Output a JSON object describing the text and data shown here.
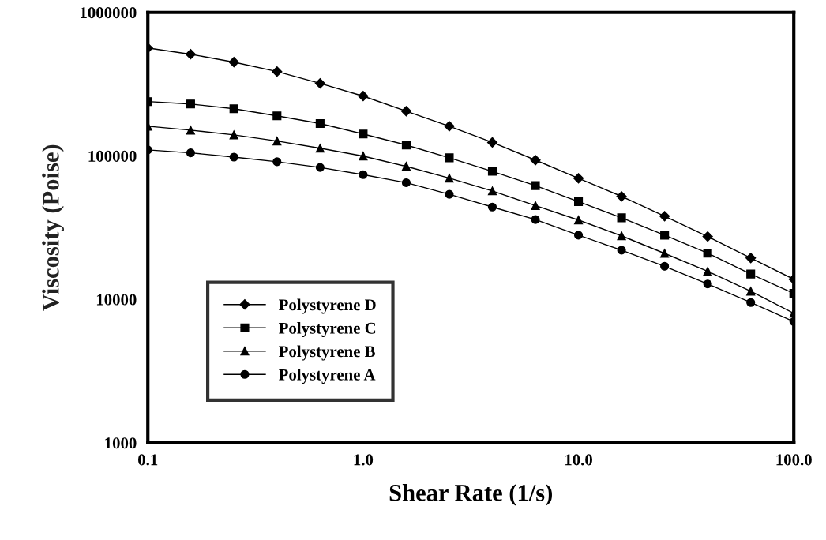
{
  "chart_data": {
    "type": "line",
    "xlabel": "Shear Rate (1/s)",
    "ylabel": "Viscosity (Poise)",
    "log": "xy",
    "grid": false,
    "legend": "bottom left",
    "x": [
      0.1,
      0.158,
      0.251,
      0.398,
      0.631,
      1,
      1.585,
      2.512,
      3.981,
      6.31,
      10,
      15.85,
      25.12,
      39.81,
      63.1,
      100
    ],
    "xlim": [
      0.1,
      100
    ],
    "xticks": [
      0.1,
      {
        "value": 1,
        "label": "1.0"
      },
      {
        "value": 10,
        "label": "10.0"
      },
      {
        "value": 100,
        "label": "100.0"
      }
    ],
    "ylim": [
      1000,
      1000000
    ],
    "yticks": [
      1000,
      10000,
      100000,
      1000000
    ],
    "series": [
      {
        "name": "Polystyrene D",
        "color": "#000000",
        "marker": "diamond",
        "values": [
          565000,
          511000,
          450000,
          387000,
          320000,
          261000,
          205000,
          161000,
          124000,
          93500,
          69800,
          52200,
          38000,
          27400,
          19400,
          13800
        ]
      },
      {
        "name": "Polystyrene C",
        "color": "#000000",
        "marker": "square",
        "values": [
          239000,
          230000,
          213000,
          190000,
          168000,
          142000,
          119000,
          97000,
          78000,
          62000,
          48000,
          37000,
          28000,
          21000,
          15000,
          11000
        ]
      },
      {
        "name": "Polystyrene B",
        "color": "#000000",
        "marker": "triangle",
        "values": [
          161000,
          151000,
          140000,
          127000,
          113000,
          99600,
          84500,
          70000,
          57000,
          45000,
          35700,
          27700,
          20900,
          15700,
          11400,
          8000
        ]
      },
      {
        "name": "Polystyrene A",
        "color": "#000000",
        "marker": "circle",
        "values": [
          110000,
          105000,
          98000,
          91000,
          83000,
          74000,
          65000,
          54000,
          44000,
          36000,
          28000,
          22000,
          17000,
          12800,
          9500,
          7000
        ]
      }
    ]
  }
}
